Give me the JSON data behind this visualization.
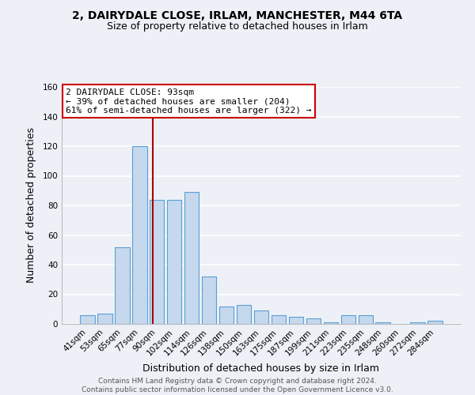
{
  "title": "2, DAIRYDALE CLOSE, IRLAM, MANCHESTER, M44 6TA",
  "subtitle": "Size of property relative to detached houses in Irlam",
  "xlabel": "Distribution of detached houses by size in Irlam",
  "ylabel": "Number of detached properties",
  "bar_labels": [
    "41sqm",
    "53sqm",
    "65sqm",
    "77sqm",
    "90sqm",
    "102sqm",
    "114sqm",
    "126sqm",
    "138sqm",
    "150sqm",
    "163sqm",
    "175sqm",
    "187sqm",
    "199sqm",
    "211sqm",
    "223sqm",
    "235sqm",
    "248sqm",
    "260sqm",
    "272sqm",
    "284sqm"
  ],
  "bar_heights": [
    6,
    7,
    52,
    120,
    84,
    84,
    89,
    32,
    12,
    13,
    9,
    6,
    5,
    4,
    1,
    6,
    6,
    1,
    0,
    1,
    2
  ],
  "bar_color": "#c5d8ed",
  "bar_edge_color": "#5a9fd4",
  "vline_color": "#aa0000",
  "annotation_title": "2 DAIRYDALE CLOSE: 93sqm",
  "annotation_line1": "← 39% of detached houses are smaller (204)",
  "annotation_line2": "61% of semi-detached houses are larger (322) →",
  "annotation_box_facecolor": "#ffffff",
  "annotation_box_edgecolor": "#cc0000",
  "ylim": [
    0,
    160
  ],
  "yticks": [
    0,
    20,
    40,
    60,
    80,
    100,
    120,
    140,
    160
  ],
  "footer_line1": "Contains HM Land Registry data © Crown copyright and database right 2024.",
  "footer_line2": "Contains public sector information licensed under the Open Government Licence v3.0.",
  "background_color": "#edf1f7",
  "plot_bg_color": "#edf1f7",
  "grid_color": "#ffffff"
}
